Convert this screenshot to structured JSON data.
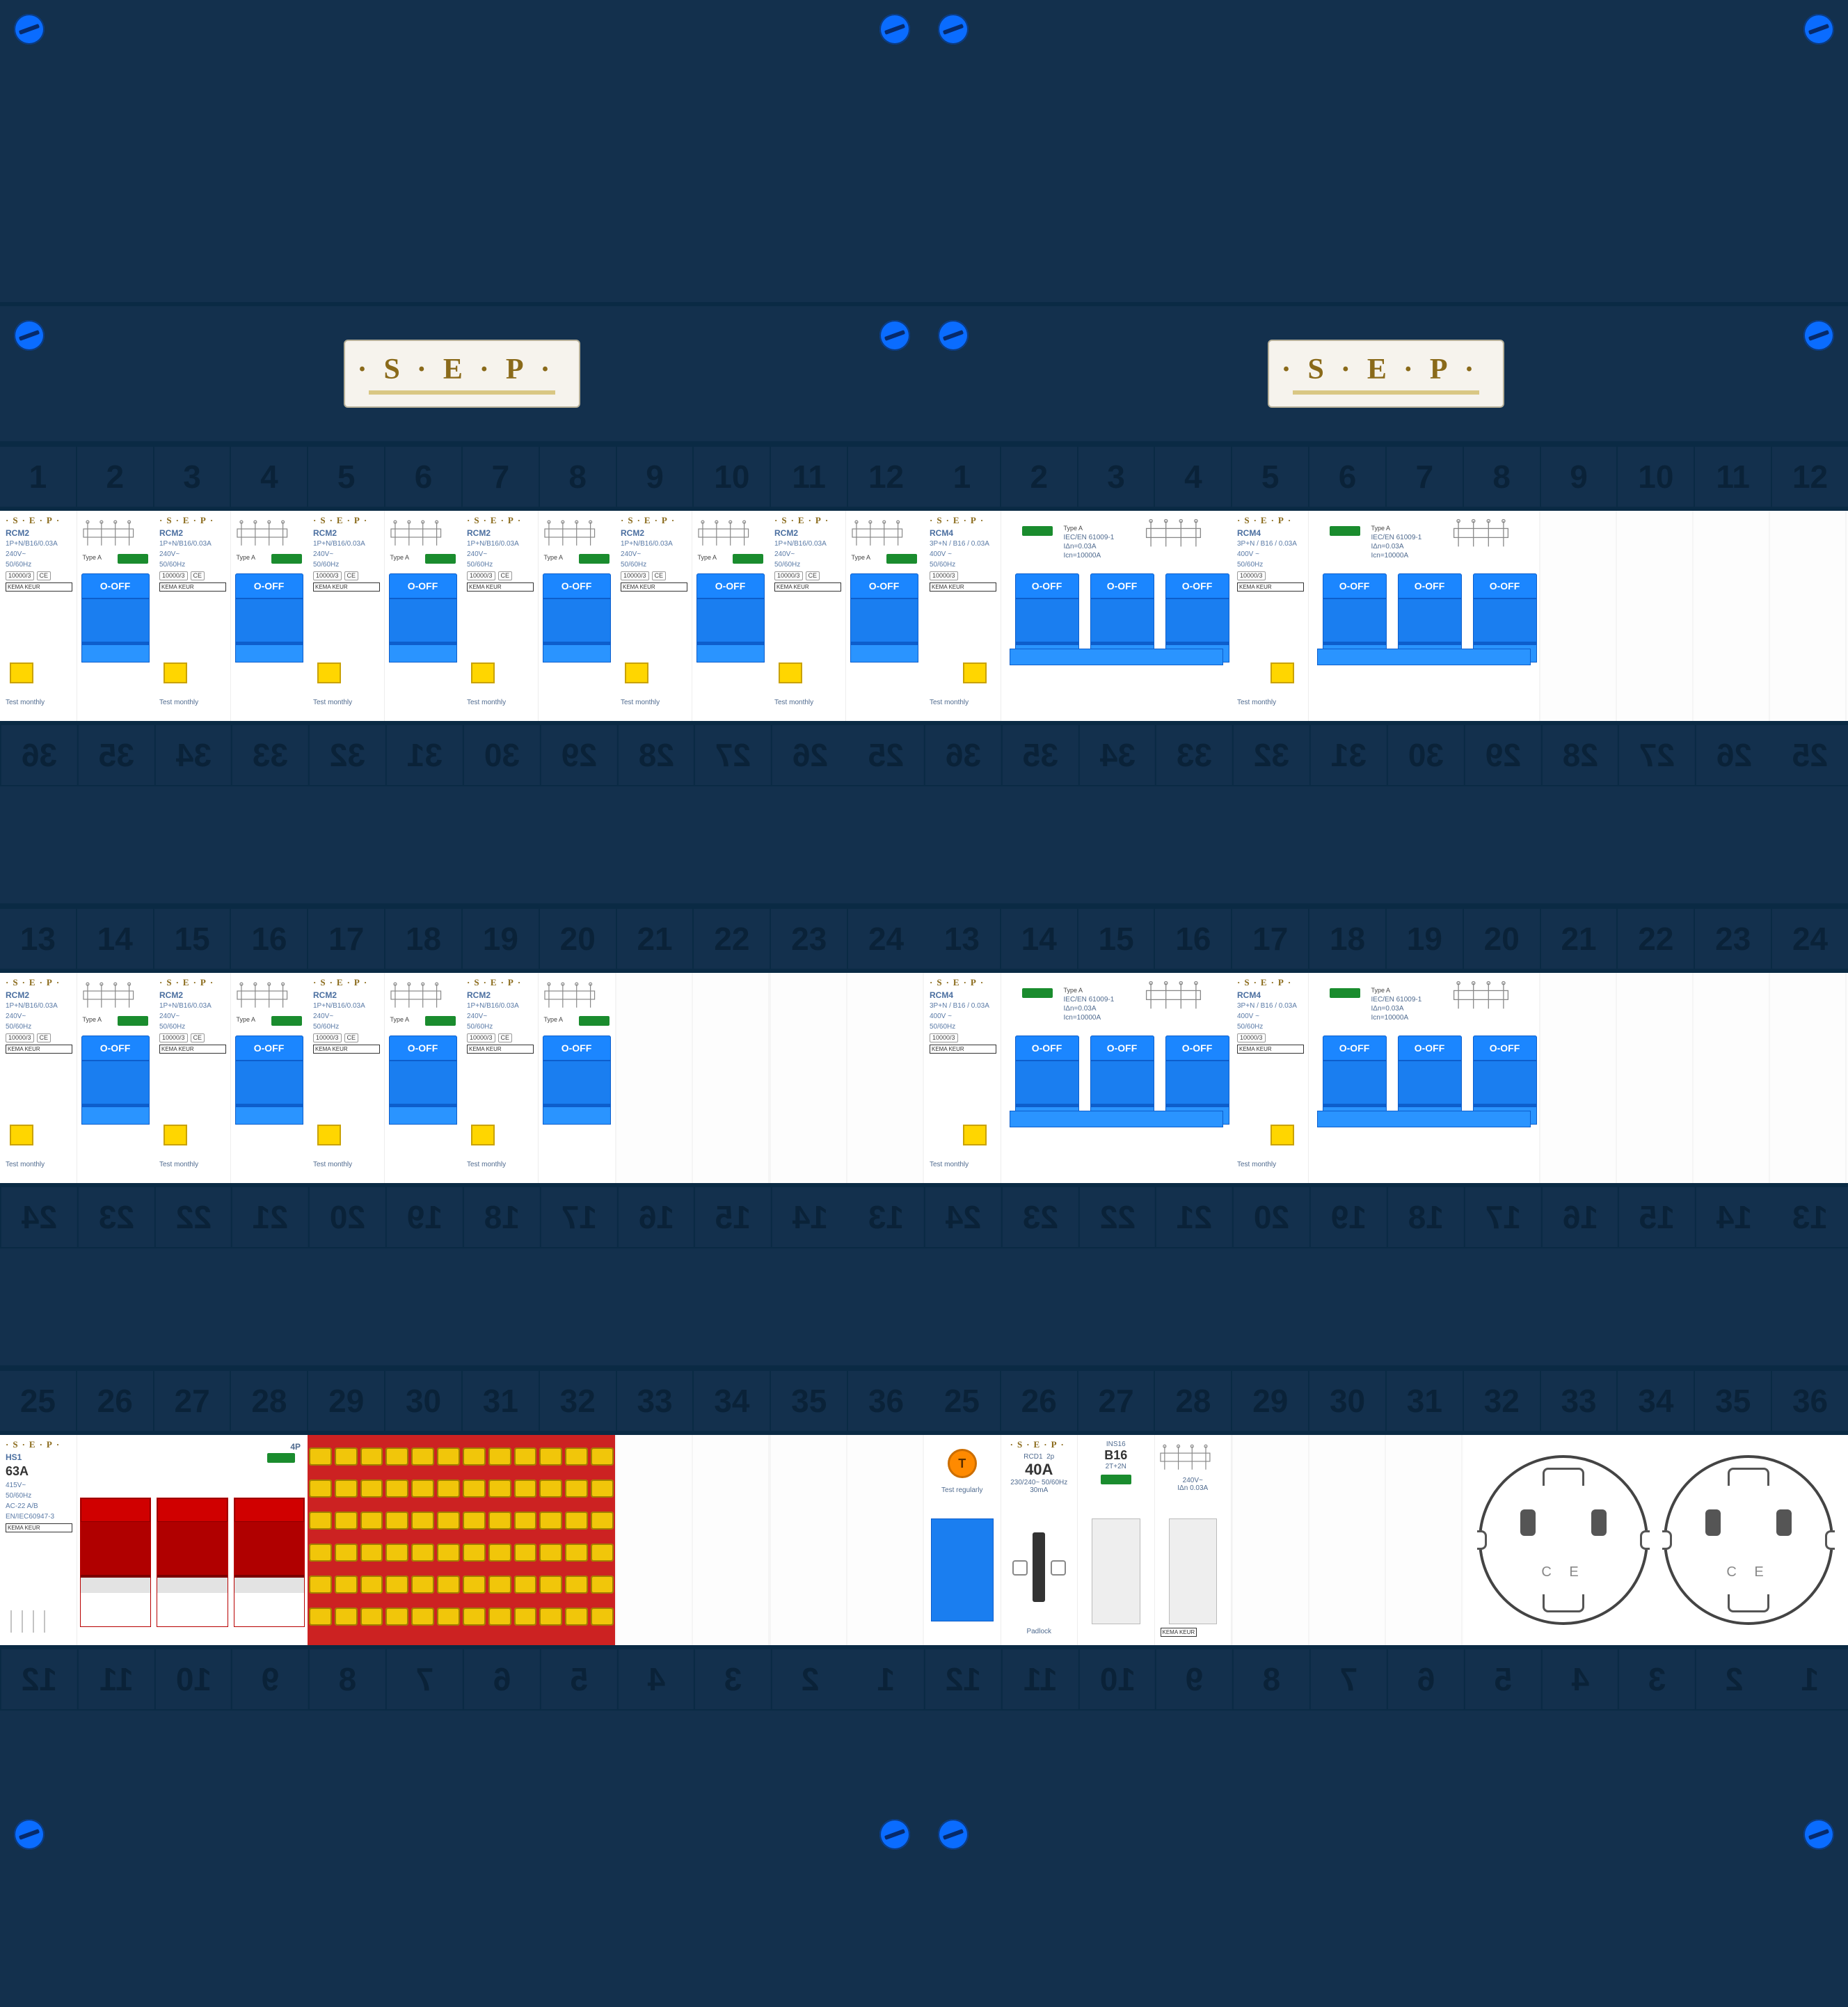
{
  "brand": "·S·E·P·",
  "panel_color": "#13304d",
  "screw_color": "#0a6cff",
  "slots_per_row": 12,
  "number_strips": {
    "row1": [
      1,
      2,
      3,
      4,
      5,
      6,
      7,
      8,
      9,
      10,
      11,
      12
    ],
    "row1b": [
      36,
      35,
      34,
      33,
      32,
      31,
      30,
      29,
      28,
      27,
      26,
      25
    ],
    "row2": [
      13,
      14,
      15,
      16,
      17,
      18,
      19,
      20,
      21,
      22,
      23,
      24
    ],
    "row2b": [
      24,
      23,
      22,
      21,
      20,
      19,
      18,
      17,
      16,
      15,
      14,
      13
    ],
    "row3": [
      25,
      26,
      27,
      28,
      29,
      30,
      31,
      32,
      33,
      34,
      35,
      36
    ],
    "row3b": [
      12,
      11,
      10,
      9,
      8,
      7,
      6,
      5,
      4,
      3,
      2,
      1
    ]
  },
  "rcm2": {
    "model": "RCM2",
    "spec1": "1P+N/B16/0.03A",
    "voltage": "240V~",
    "freq": "50/60Hz",
    "toggle_label": "O-OFF",
    "test_label": "Test monthly",
    "type": "Type A",
    "cert_ce": "CE",
    "kema": "KEMA KEUR",
    "color_toggle": "#1b86ff",
    "color_test": "#ffd600",
    "color_led": "#1a8c2e"
  },
  "rcm4": {
    "model": "RCM4",
    "spec1": "3P+N / B16 / 0.03A",
    "voltage": "400V ~",
    "freq": "50/60Hz",
    "type": "Type A",
    "iec": "IEC/EN 61009-1",
    "idn": "IΔn=0.03A",
    "ics": "Icn=10000A",
    "toggle_label": "O-OFF",
    "test_label": "Test monthly",
    "kema": "KEMA KEUR"
  },
  "hs1": {
    "model": "HS1",
    "rating": "63A",
    "voltage": "415V~",
    "freq": "50/60Hz",
    "ac": "AC-22 A/B",
    "iec": "EN/IEC60947-3",
    "poles": "4P",
    "kema": "KEMA KEUR",
    "color_toggle": "#d00000"
  },
  "busbar": {
    "color_body": "#cc2222",
    "color_terminal": "#f1c60a",
    "rows": 6,
    "holes_per_row": 12
  },
  "rcd1": {
    "model": "RCD1",
    "poles": "2p",
    "rating": "40A",
    "voltage": "230/240~",
    "freq": "50/60Hz",
    "sens": "30mA",
    "test_char": "T",
    "test_label": "Test regularly",
    "padlock": "Padlock",
    "ins16": {
      "model": "INS16",
      "rating": "B16",
      "note": "2T+2N",
      "voltage": "240V~",
      "idn": "IΔn 0.03A"
    }
  },
  "socket": {
    "ce": "C E",
    "color_outline": "#444444"
  },
  "layout": {
    "left": {
      "rail1": [
        "rcm2",
        "rcm2",
        "rcm2",
        "rcm2",
        "rcm2",
        "rcm2"
      ],
      "rail2": [
        "rcm2",
        "rcm2",
        "rcm2",
        "rcm2",
        "empty",
        "empty"
      ],
      "rail3": [
        "hs1",
        "busbar",
        "empty",
        "empty"
      ]
    },
    "right": {
      "rail1": [
        "rcm4",
        "rcm4",
        "empty"
      ],
      "rail2": [
        "rcm4",
        "rcm4",
        "empty"
      ],
      "rail3": [
        "rcd1",
        "empty",
        "sockets"
      ]
    }
  }
}
